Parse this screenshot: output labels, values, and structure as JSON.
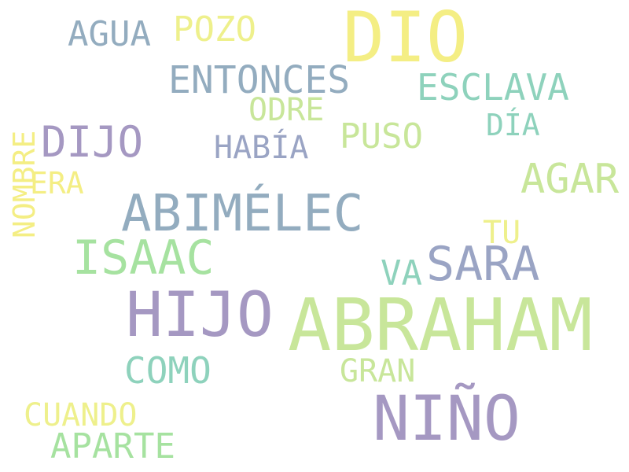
{
  "palette": {
    "yellow": "#f4ee84",
    "pale_yellow": "#eef08c",
    "light_green": "#c8e69a",
    "green": "#a6e2a0",
    "teal": "#8ed2bc",
    "blue_gray": "#93acbf",
    "slate": "#9aa4c4",
    "purple": "#a598c2"
  },
  "words": {
    "dio": "DIO",
    "abraham": "ABRAHAM",
    "hijo": "HIJO",
    "nino": "NIÑO",
    "abimelec": "ABIMÉLEC",
    "sara": "SARA",
    "isaac": "ISAAC",
    "dijo": "DIJO",
    "agar": "AGAR",
    "entonces": "ENTONCES",
    "esclava": "ESCLAVA",
    "como": "COMO",
    "aparte": "APARTE",
    "agua": "AGUA",
    "pozo": "POZO",
    "puso": "PUSO",
    "habia": "HABÍA",
    "cuando": "CUANDO",
    "gran": "GRAN",
    "odre": "ODRE",
    "dia": "DÍA",
    "era": "ERA",
    "va": "VA",
    "tu": "TU",
    "nombre": "NOMBRE"
  }
}
